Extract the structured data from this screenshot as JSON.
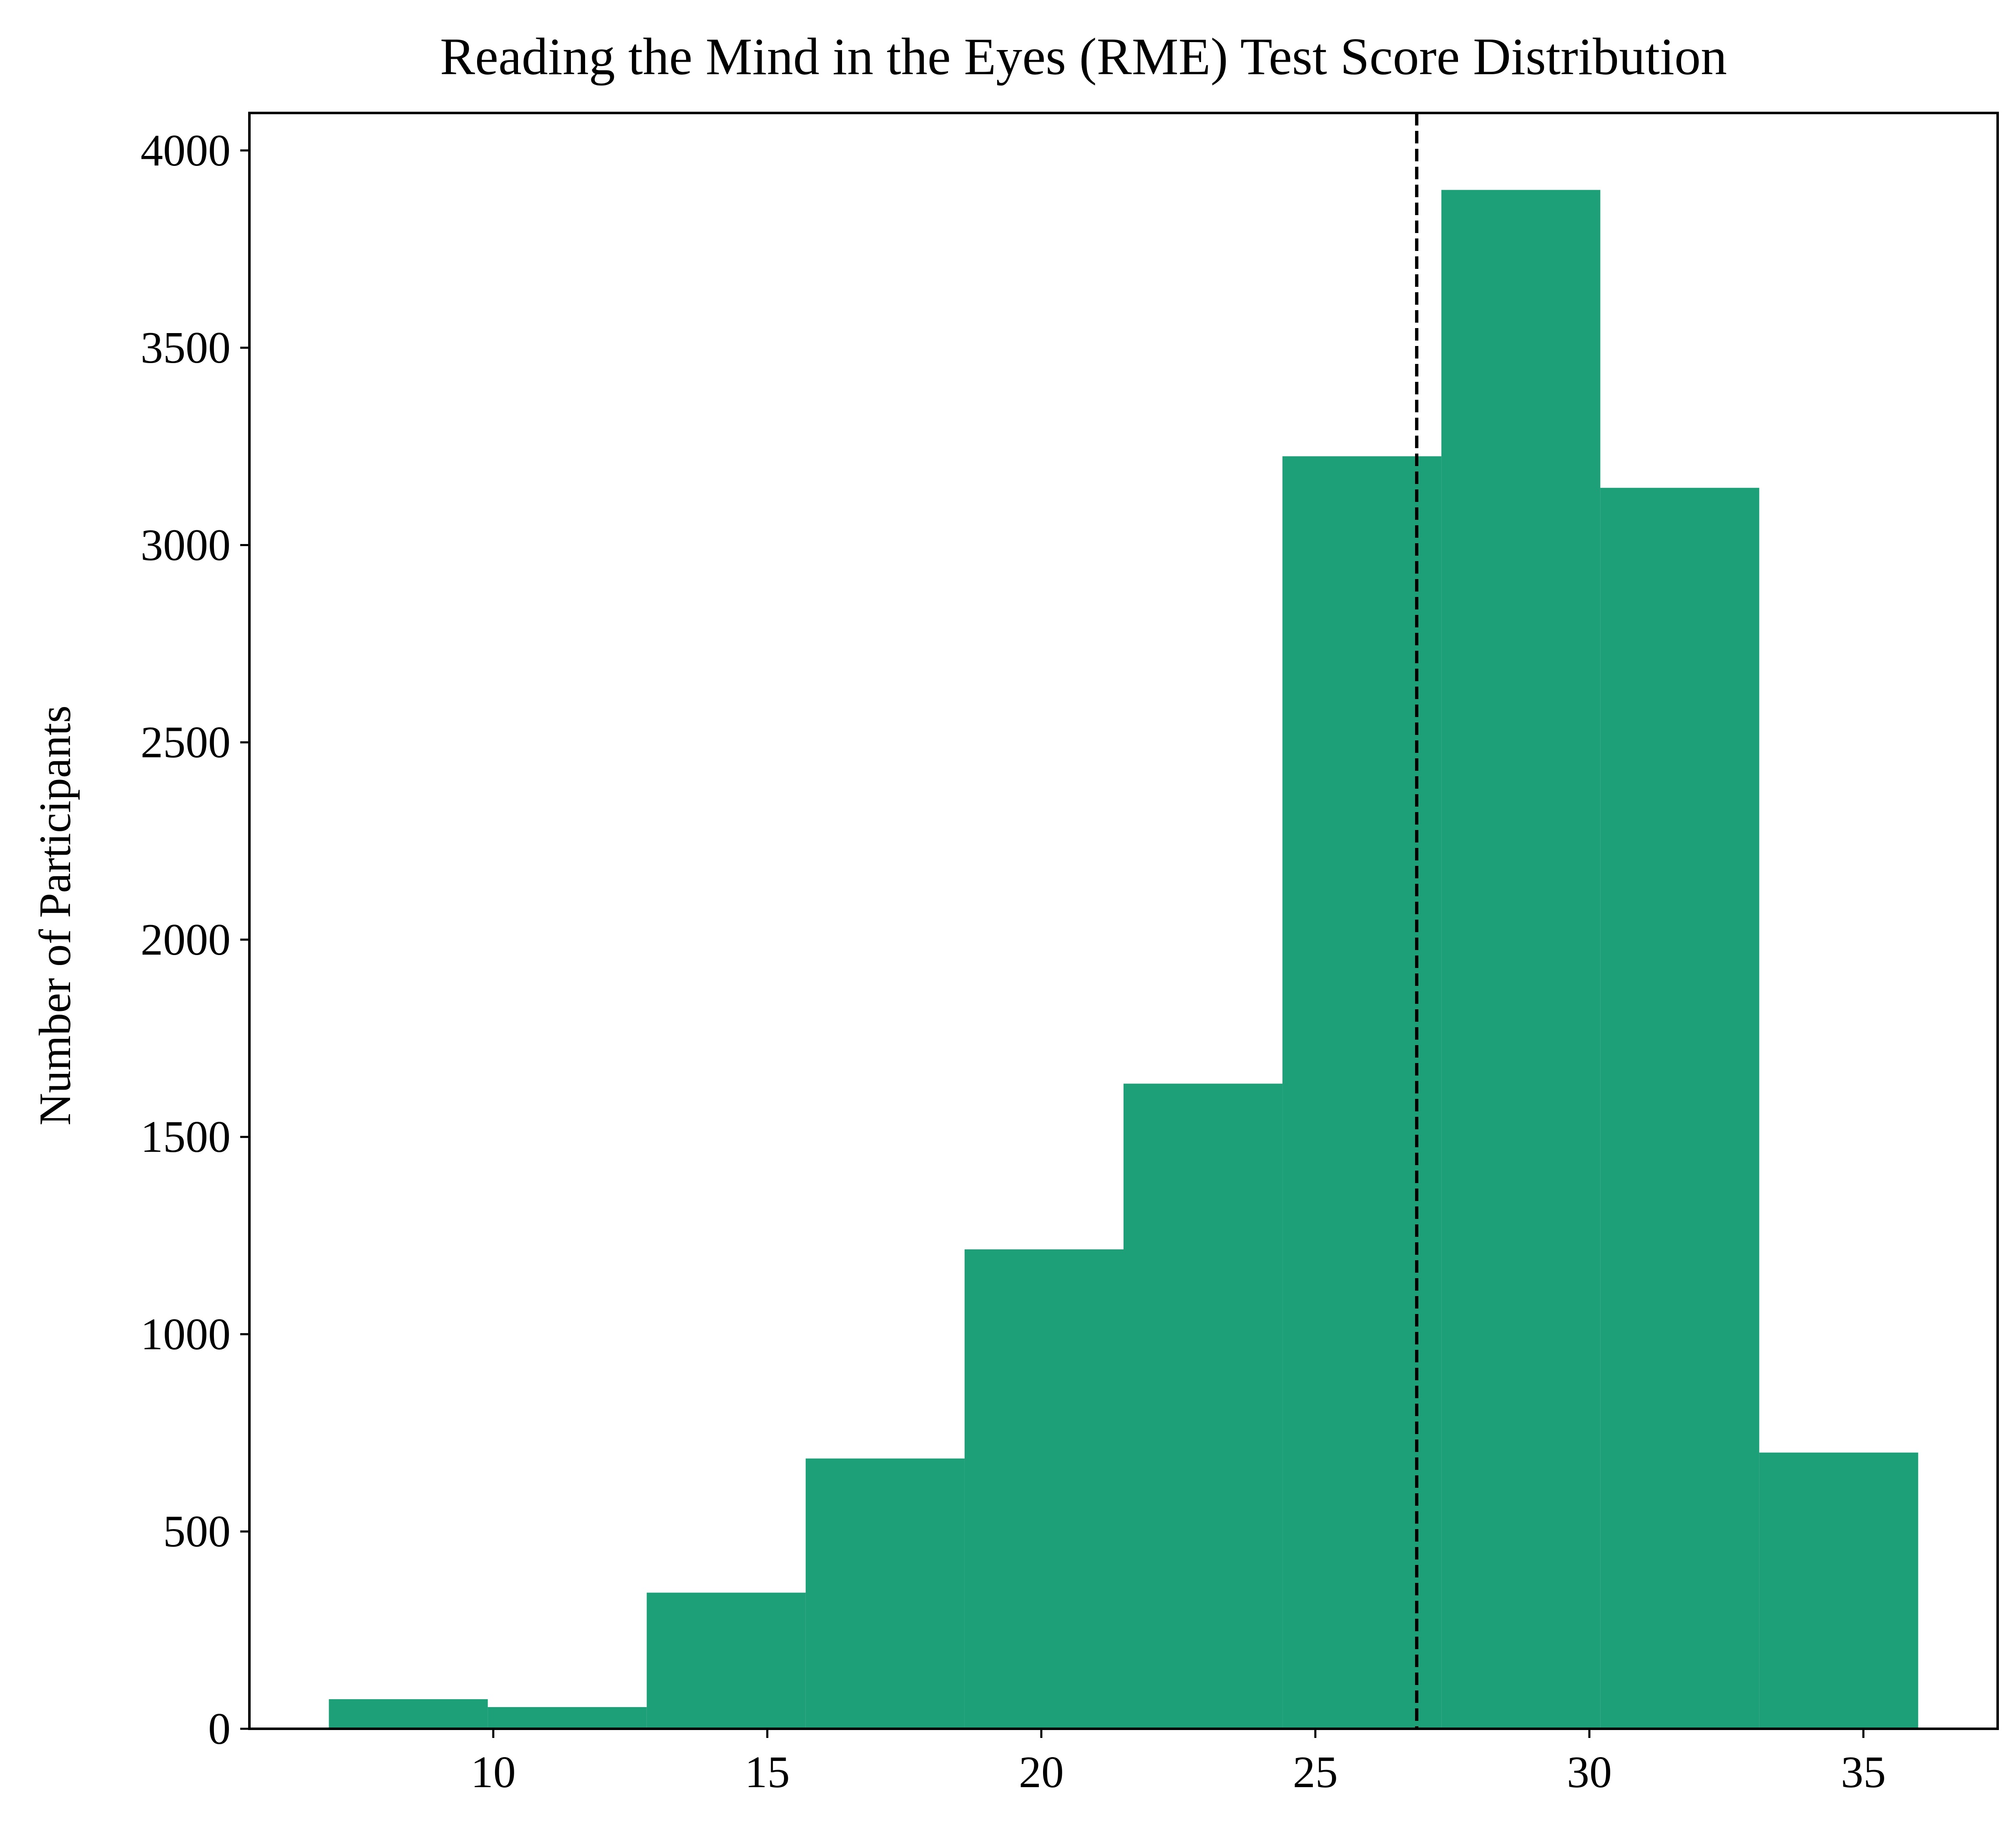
{
  "chart_data": {
    "type": "bar",
    "title": "Reading the Mind in the Eyes (RME) Test Score Distribution",
    "xlabel": "",
    "ylabel": "Number of Participants",
    "bin_edges": [
      7.0,
      9.9,
      12.8,
      15.7,
      18.6,
      21.5,
      24.4,
      27.3,
      30.2,
      33.1,
      36.0
    ],
    "values": [
      75,
      55,
      345,
      685,
      1215,
      1635,
      3225,
      3900,
      3145,
      700
    ],
    "xlim": [
      5.55,
      37.45
    ],
    "ylim": [
      0,
      4095
    ],
    "xticks": [
      10,
      15,
      20,
      25,
      30,
      35
    ],
    "xtick_labels": [
      "10",
      "15",
      "20",
      "25",
      "30",
      "35"
    ],
    "yticks": [
      0,
      500,
      1000,
      1500,
      2000,
      2500,
      3000,
      3500,
      4000
    ],
    "ytick_labels": [
      "0",
      "500",
      "1000",
      "1500",
      "2000",
      "2500",
      "3000",
      "3500",
      "4000"
    ],
    "mean_line": {
      "x": 26.85,
      "style": "dashed"
    },
    "bar_color": "#1d9f78",
    "grid": false,
    "legend": "none"
  }
}
